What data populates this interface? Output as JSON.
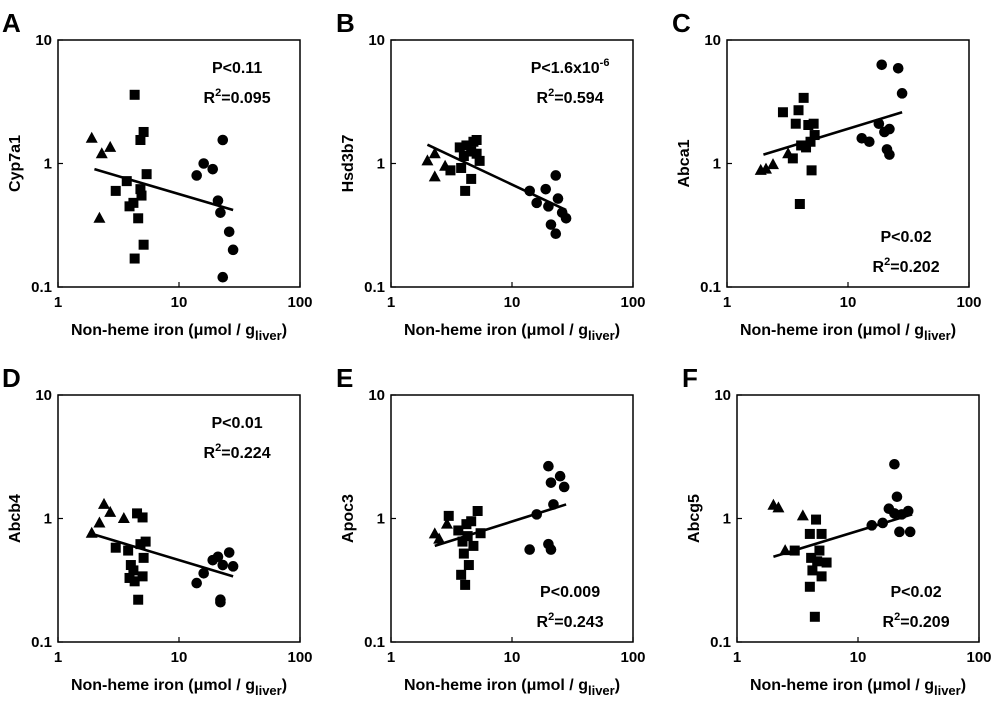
{
  "chart_data": [
    {
      "panel_label": "A",
      "type": "scatter",
      "xlabel": "Non-heme iron (μmol / g",
      "xlabel_sub": "liver",
      "xlabel_end": ")",
      "ylabel": "Cyp7a1",
      "xscale": "log",
      "yscale": "log",
      "xlim": [
        1,
        100
      ],
      "ylim": [
        0.1,
        10
      ],
      "xticks": [
        "1",
        "10",
        "100"
      ],
      "yticks": [
        "0.1",
        "1",
        "10"
      ],
      "stat_position": "top-right",
      "p_text": "P<0.11",
      "r2_prefix": "R",
      "r2_sup": "2",
      "r2_value": "=0.095",
      "fit": [
        [
          2,
          0.9
        ],
        [
          28,
          0.42
        ]
      ],
      "series": [
        {
          "marker": "triangle",
          "points": [
            [
              1.9,
              1.6
            ],
            [
              2.3,
              1.2
            ],
            [
              2.7,
              1.35
            ],
            [
              2.2,
              0.36
            ]
          ]
        },
        {
          "marker": "square",
          "points": [
            [
              3.0,
              0.6
            ],
            [
              3.7,
              0.72
            ],
            [
              4.3,
              3.6
            ],
            [
              4.8,
              1.55
            ],
            [
              5.1,
              1.8
            ],
            [
              5.4,
              0.82
            ],
            [
              3.9,
              0.45
            ],
            [
              4.2,
              0.48
            ],
            [
              4.8,
              0.62
            ],
            [
              4.9,
              0.55
            ],
            [
              4.6,
              0.36
            ],
            [
              5.1,
              0.22
            ],
            [
              4.3,
              0.17
            ]
          ]
        },
        {
          "marker": "circle",
          "points": [
            [
              16,
              1.0
            ],
            [
              14,
              0.8
            ],
            [
              19,
              0.9
            ],
            [
              23,
              1.55
            ],
            [
              21,
              0.5
            ],
            [
              22,
              0.4
            ],
            [
              26,
              0.28
            ],
            [
              28,
              0.2
            ],
            [
              23,
              0.12
            ]
          ]
        }
      ]
    },
    {
      "panel_label": "B",
      "type": "scatter",
      "xlabel": "Non-heme iron (μmol / g",
      "xlabel_sub": "liver",
      "xlabel_end": ")",
      "ylabel": "Hsd3b7",
      "xscale": "log",
      "yscale": "log",
      "xlim": [
        1,
        100
      ],
      "ylim": [
        0.1,
        10
      ],
      "xticks": [
        "1",
        "10",
        "100"
      ],
      "yticks": [
        "0.1",
        "1",
        "10"
      ],
      "stat_position": "top-right",
      "p_text": "P<1.6x10",
      "p_sup": "-6",
      "r2_prefix": "R",
      "r2_sup": "2",
      "r2_value": "=0.594",
      "fit": [
        [
          2,
          1.42
        ],
        [
          28,
          0.42
        ]
      ],
      "series": [
        {
          "marker": "triangle",
          "points": [
            [
              2.0,
              1.05
            ],
            [
              2.3,
              1.2
            ],
            [
              2.3,
              0.78
            ],
            [
              2.8,
              0.95
            ]
          ]
        },
        {
          "marker": "square",
          "points": [
            [
              3.7,
              1.35
            ],
            [
              4.2,
              1.4
            ],
            [
              4.8,
              1.5
            ],
            [
              5.1,
              1.55
            ],
            [
              5.4,
              1.05
            ],
            [
              4.0,
              1.15
            ],
            [
              4.6,
              1.25
            ],
            [
              3.1,
              0.88
            ],
            [
              3.8,
              0.92
            ],
            [
              4.6,
              0.75
            ],
            [
              4.1,
              0.6
            ],
            [
              5.1,
              1.2
            ]
          ]
        },
        {
          "marker": "circle",
          "points": [
            [
              14,
              0.6
            ],
            [
              16,
              0.48
            ],
            [
              19,
              0.62
            ],
            [
              20,
              0.45
            ],
            [
              23,
              0.8
            ],
            [
              24,
              0.52
            ],
            [
              26,
              0.4
            ],
            [
              28,
              0.36
            ],
            [
              21,
              0.32
            ],
            [
              23,
              0.27
            ]
          ]
        }
      ]
    },
    {
      "panel_label": "C",
      "type": "scatter",
      "xlabel": "Non-heme iron (μmol / g",
      "xlabel_sub": "liver",
      "xlabel_end": ")",
      "ylabel": "Abca1",
      "xscale": "log",
      "yscale": "log",
      "xlim": [
        1,
        100
      ],
      "ylim": [
        0.1,
        10
      ],
      "xticks": [
        "1",
        "10",
        "100"
      ],
      "yticks": [
        "0.1",
        "1",
        "10"
      ],
      "stat_position": "bottom-right",
      "p_text": "P<0.02",
      "r2_prefix": "R",
      "r2_sup": "2",
      "r2_value": "=0.202",
      "fit": [
        [
          2,
          1.18
        ],
        [
          28,
          2.6
        ]
      ],
      "series": [
        {
          "marker": "triangle",
          "points": [
            [
              1.9,
              0.88
            ],
            [
              2.1,
              0.9
            ],
            [
              2.4,
              0.98
            ],
            [
              3.2,
              1.2
            ]
          ]
        },
        {
          "marker": "square",
          "points": [
            [
              2.9,
              2.6
            ],
            [
              3.7,
              2.1
            ],
            [
              3.9,
              2.7
            ],
            [
              4.3,
              3.4
            ],
            [
              4.7,
              2.05
            ],
            [
              5.2,
              2.1
            ],
            [
              4.1,
              1.4
            ],
            [
              4.9,
              1.5
            ],
            [
              4.5,
              1.35
            ],
            [
              3.5,
              1.1
            ],
            [
              5.0,
              0.88
            ],
            [
              4.0,
              0.47
            ],
            [
              5.3,
              1.7
            ]
          ]
        },
        {
          "marker": "circle",
          "points": [
            [
              13,
              1.6
            ],
            [
              15,
              1.5
            ],
            [
              18,
              2.1
            ],
            [
              20,
              1.8
            ],
            [
              19,
              6.3
            ],
            [
              26,
              5.9
            ],
            [
              28,
              3.7
            ],
            [
              22,
              1.9
            ],
            [
              21,
              1.3
            ],
            [
              22,
              1.18
            ]
          ]
        }
      ]
    },
    {
      "panel_label": "D",
      "type": "scatter",
      "xlabel": "Non-heme iron (μmol / g",
      "xlabel_sub": "liver",
      "xlabel_end": ")",
      "ylabel": "Abcb4",
      "xscale": "log",
      "yscale": "log",
      "xlim": [
        1,
        100
      ],
      "ylim": [
        0.1,
        10
      ],
      "xticks": [
        "1",
        "10",
        "100"
      ],
      "yticks": [
        "0.1",
        "1",
        "10"
      ],
      "stat_position": "top-right",
      "p_text": "P<0.01",
      "r2_prefix": "R",
      "r2_sup": "2",
      "r2_value": "=0.224",
      "fit": [
        [
          2,
          0.74
        ],
        [
          28,
          0.34
        ]
      ],
      "series": [
        {
          "marker": "triangle",
          "points": [
            [
              1.9,
              0.76
            ],
            [
              2.2,
              0.92
            ],
            [
              2.4,
              1.3
            ],
            [
              2.7,
              1.12
            ],
            [
              3.5,
              1.0
            ]
          ]
        },
        {
          "marker": "square",
          "points": [
            [
              3.0,
              0.58
            ],
            [
              3.8,
              0.55
            ],
            [
              4.5,
              1.1
            ],
            [
              5.0,
              1.02
            ],
            [
              4.8,
              0.62
            ],
            [
              5.3,
              0.65
            ],
            [
              5.1,
              0.48
            ],
            [
              4.0,
              0.42
            ],
            [
              4.2,
              0.38
            ],
            [
              3.9,
              0.33
            ],
            [
              4.3,
              0.31
            ],
            [
              5.0,
              0.34
            ],
            [
              4.6,
              0.22
            ]
          ]
        },
        {
          "marker": "circle",
          "points": [
            [
              14,
              0.3
            ],
            [
              16,
              0.36
            ],
            [
              19,
              0.46
            ],
            [
              21,
              0.49
            ],
            [
              23,
              0.42
            ],
            [
              26,
              0.53
            ],
            [
              28,
              0.41
            ],
            [
              22,
              0.22
            ],
            [
              22,
              0.21
            ]
          ]
        }
      ]
    },
    {
      "panel_label": "E",
      "type": "scatter",
      "xlabel": "Non-heme iron (μmol / g",
      "xlabel_sub": "liver",
      "xlabel_end": ")",
      "ylabel": "Apoc3",
      "xscale": "log",
      "yscale": "log",
      "xlim": [
        1,
        100
      ],
      "ylim": [
        0.1,
        10
      ],
      "xticks": [
        "1",
        "10",
        "100"
      ],
      "yticks": [
        "0.1",
        "1",
        "10"
      ],
      "stat_position": "bottom-right",
      "p_text": "P<0.009",
      "r2_prefix": "R",
      "r2_sup": "2",
      "r2_value": "=0.243",
      "fit": [
        [
          2.3,
          0.6
        ],
        [
          28,
          1.3
        ]
      ],
      "series": [
        {
          "marker": "triangle",
          "points": [
            [
              2.3,
              0.75
            ],
            [
              2.5,
              0.68
            ],
            [
              2.9,
              0.9
            ]
          ]
        },
        {
          "marker": "square",
          "points": [
            [
              3.0,
              1.05
            ],
            [
              3.6,
              0.8
            ],
            [
              4.2,
              0.9
            ],
            [
              4.6,
              0.95
            ],
            [
              5.2,
              1.15
            ],
            [
              5.5,
              0.76
            ],
            [
              3.9,
              0.65
            ],
            [
              4.3,
              0.72
            ],
            [
              4.8,
              0.6
            ],
            [
              4.0,
              0.52
            ],
            [
              4.4,
              0.42
            ],
            [
              3.8,
              0.35
            ],
            [
              4.1,
              0.29
            ]
          ]
        },
        {
          "marker": "circle",
          "points": [
            [
              16,
              1.08
            ],
            [
              20,
              2.65
            ],
            [
              21,
              1.95
            ],
            [
              25,
              2.2
            ],
            [
              27,
              1.8
            ],
            [
              22,
              1.3
            ],
            [
              14,
              0.56
            ],
            [
              20,
              0.62
            ],
            [
              21,
              0.56
            ]
          ]
        }
      ]
    },
    {
      "panel_label": "F",
      "type": "scatter",
      "xlabel": "Non-heme iron (μmol / g",
      "xlabel_sub": "liver",
      "xlabel_end": ")",
      "ylabel": "Abcg5",
      "xscale": "log",
      "yscale": "log",
      "xlim": [
        1,
        100
      ],
      "ylim": [
        0.1,
        10
      ],
      "xticks": [
        "1",
        "10",
        "100"
      ],
      "yticks": [
        "0.1",
        "1",
        "10"
      ],
      "stat_position": "bottom-right",
      "p_text": "P<0.02",
      "r2_prefix": "R",
      "r2_sup": "2",
      "r2_value": "=0.209",
      "fit": [
        [
          2,
          0.49
        ],
        [
          28,
          1.08
        ]
      ],
      "series": [
        {
          "marker": "triangle",
          "points": [
            [
              2.0,
              1.28
            ],
            [
              2.2,
              1.22
            ],
            [
              2.5,
              0.55
            ],
            [
              3.5,
              1.05
            ]
          ]
        },
        {
          "marker": "square",
          "points": [
            [
              3.0,
              0.55
            ],
            [
              4.0,
              0.75
            ],
            [
              4.5,
              0.98
            ],
            [
              5.0,
              0.75
            ],
            [
              5.5,
              0.44
            ],
            [
              4.1,
              0.48
            ],
            [
              4.6,
              0.45
            ],
            [
              4.8,
              0.55
            ],
            [
              4.2,
              0.38
            ],
            [
              5.0,
              0.34
            ],
            [
              4.0,
              0.28
            ],
            [
              4.4,
              0.16
            ]
          ]
        },
        {
          "marker": "circle",
          "points": [
            [
              13,
              0.88
            ],
            [
              16,
              0.92
            ],
            [
              18,
              1.2
            ],
            [
              20,
              1.1
            ],
            [
              21,
              1.5
            ],
            [
              23,
              1.08
            ],
            [
              26,
              1.15
            ],
            [
              22,
              0.78
            ],
            [
              27,
              0.78
            ],
            [
              20,
              2.75
            ]
          ]
        }
      ]
    }
  ]
}
